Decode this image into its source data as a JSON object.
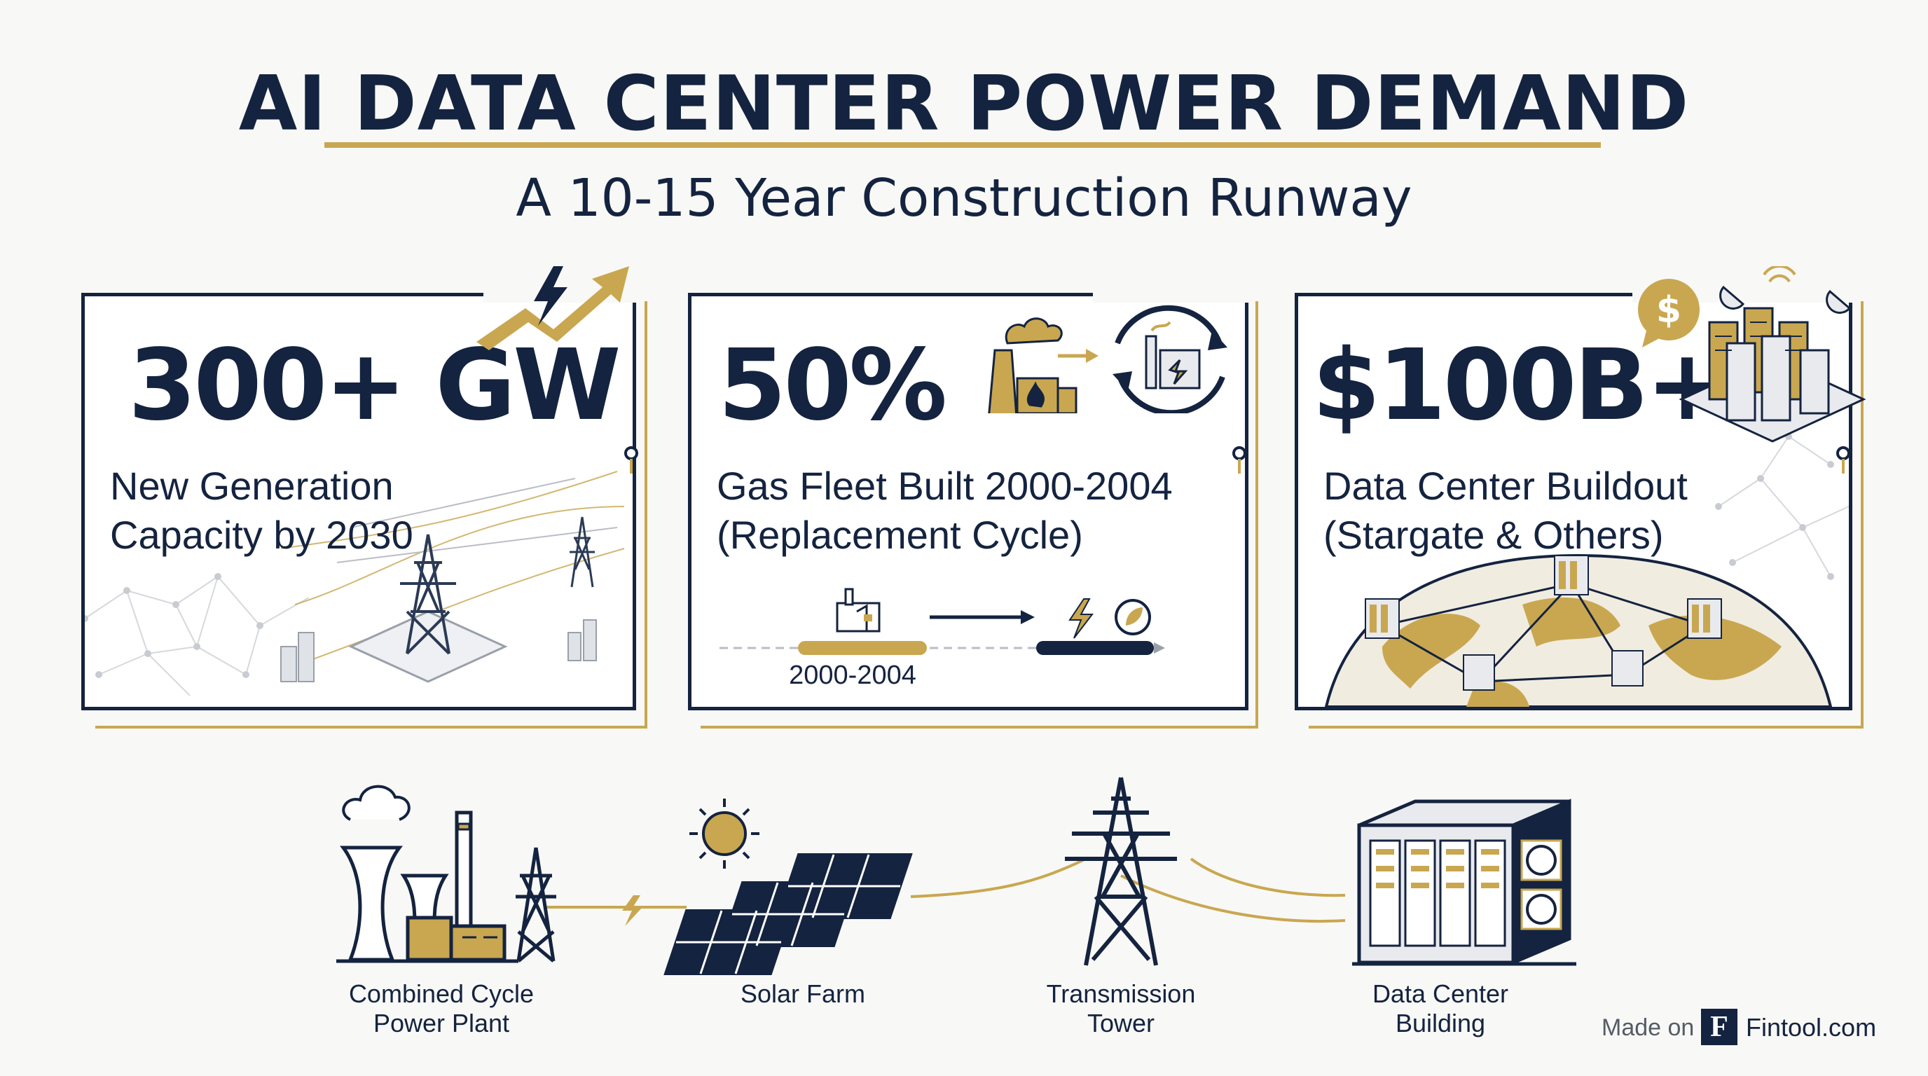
{
  "header": {
    "title": "AI DATA CENTER POWER DEMAND",
    "subtitle": "A 10-15 Year Construction Runway"
  },
  "cards": [
    {
      "stat": "300+ GW",
      "line1": "New Generation",
      "line2": "Capacity by 2030"
    },
    {
      "stat": "50%",
      "line1": "Gas Fleet Built 2000-2004",
      "line2": "(Replacement Cycle)",
      "timeline_label": "2000-2004"
    },
    {
      "stat": "$100B+",
      "line1": "Data Center Buildout",
      "line2": "(Stargate & Others)"
    }
  ],
  "chain": [
    {
      "line1": "Combined Cycle",
      "line2": "Power Plant"
    },
    {
      "line1": "Solar Farm",
      "line2": ""
    },
    {
      "line1": "Transmission",
      "line2": "Tower"
    },
    {
      "line1": "Data Center",
      "line2": "Building"
    }
  ],
  "footer": {
    "made_on": "Made on",
    "logo_letter": "F",
    "brand": "Fintool.com"
  },
  "colors": {
    "navy": "#14233f",
    "gold": "#c9a750",
    "background": "#f8f8f6"
  }
}
